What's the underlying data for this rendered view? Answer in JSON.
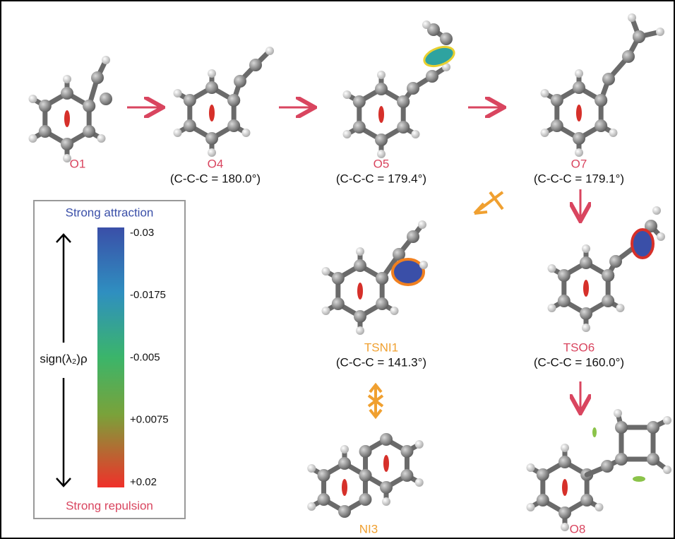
{
  "structures": [
    {
      "label": "O1"
    },
    {
      "label": "O4",
      "angle": "(C-C-C = 180.0°)"
    },
    {
      "label": "O5",
      "angle": "(C-C-C = 179.4°)"
    },
    {
      "label": "O7",
      "angle": "(C-C-C = 179.1°)"
    },
    {
      "label": "TSNI1",
      "angle": "(C-C-C = 141.3°)"
    },
    {
      "label": "TSO6",
      "angle": "(C-C-C = 160.0°)"
    },
    {
      "label": "NI3"
    },
    {
      "label": "O8"
    }
  ],
  "legend": {
    "top_label": "Strong attraction",
    "bottom_label": "Strong repulsion",
    "axis_label": "sign(λ₂)ρ",
    "ticks": [
      -0.03,
      -0.0175,
      -0.005,
      {
        "value": 0.0075,
        "label": "+0.0075"
      },
      {
        "value": 0.02,
        "label": "+0.02"
      }
    ]
  }
}
